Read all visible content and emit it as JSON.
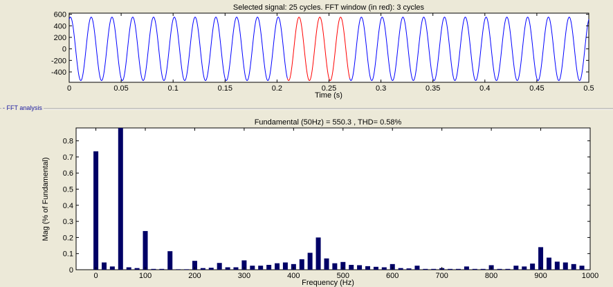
{
  "panel": {
    "label": "FFT analysis"
  },
  "chart_data": [
    {
      "type": "line",
      "title": "Selected signal: 25 cycles. FFT window (in red): 3 cycles",
      "xlabel": "Time (s)",
      "ylabel": "",
      "xlim": [
        0,
        0.5
      ],
      "ylim": [
        -580,
        620
      ],
      "xticks": [
        "0",
        "0.05",
        "0.1",
        "0.15",
        "0.2",
        "0.25",
        "0.3",
        "0.35",
        "0.4",
        "0.45",
        "0.5"
      ],
      "yticks": [
        "600",
        "400",
        "200",
        "0",
        "-200",
        "-400"
      ],
      "signal": {
        "frequency_hz": 50,
        "amplitude": 550.3,
        "cycles": 25
      },
      "fft_window": {
        "start": 0.21,
        "end": 0.27,
        "cycles": 3
      },
      "colors": {
        "signal": "#0000ff",
        "window": "#ff0000"
      }
    },
    {
      "type": "bar",
      "title": "Fundamental (50Hz) = 550.3 , THD= 0.58%",
      "xlabel": "Frequency (Hz)",
      "ylabel": "Mag (% of Fundamental)",
      "xlim": [
        -40,
        1000
      ],
      "ylim": [
        0,
        0.88
      ],
      "xticks": [
        "0",
        "100",
        "200",
        "300",
        "400",
        "500",
        "600",
        "700",
        "800",
        "900",
        "1000"
      ],
      "yticks": [
        "0",
        "0.1",
        "0.2",
        "0.3",
        "0.4",
        "0.5",
        "0.6",
        "0.7",
        "0.8"
      ],
      "bar_color": "#000066",
      "x": [
        0,
        16.7,
        33.3,
        50,
        66.7,
        83.3,
        100,
        116.7,
        133.3,
        150,
        166.7,
        183.3,
        200,
        216.7,
        233.3,
        250,
        266.7,
        283.3,
        300,
        316.7,
        333.3,
        350,
        366.7,
        383.3,
        400,
        416.7,
        433.3,
        450,
        466.7,
        483.3,
        500,
        516.7,
        533.3,
        550,
        566.7,
        583.3,
        600,
        616.7,
        633.3,
        650,
        666.7,
        683.3,
        700,
        716.7,
        733.3,
        750,
        766.7,
        783.3,
        800,
        816.7,
        833.3,
        850,
        866.7,
        883.3,
        900,
        916.7,
        933.3,
        950,
        966.7,
        983.3
      ],
      "values": [
        0.735,
        0.045,
        0.02,
        0.88,
        0.015,
        0.01,
        0.24,
        0.005,
        0.005,
        0.115,
        0.003,
        0.003,
        0.055,
        0.01,
        0.012,
        0.042,
        0.015,
        0.015,
        0.058,
        0.025,
        0.025,
        0.03,
        0.04,
        0.045,
        0.035,
        0.065,
        0.105,
        0.2,
        0.07,
        0.04,
        0.048,
        0.03,
        0.028,
        0.022,
        0.018,
        0.015,
        0.035,
        0.01,
        0.008,
        0.025,
        0.005,
        0.005,
        0.01,
        0.005,
        0.005,
        0.02,
        0.005,
        0.005,
        0.028,
        0.005,
        0.005,
        0.025,
        0.02,
        0.038,
        0.14,
        0.075,
        0.05,
        0.045,
        0.035,
        0.025
      ]
    }
  ]
}
